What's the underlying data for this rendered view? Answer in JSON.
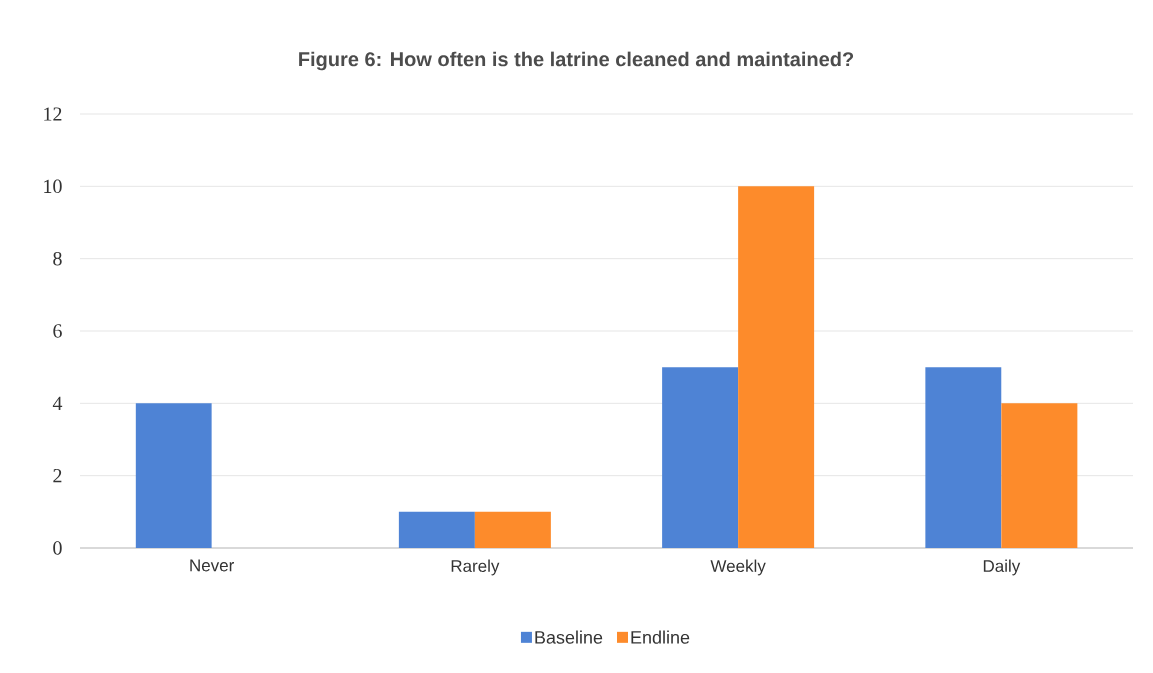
{
  "chart_data": {
    "type": "bar",
    "title": "Figure 6: How often is the latrine cleaned and maintained?",
    "categories": [
      "Never",
      "Rarely",
      "Weekly",
      "Daily"
    ],
    "series": [
      {
        "name": "Baseline",
        "color": "#4e83d5",
        "values": [
          4,
          1,
          5,
          5
        ]
      },
      {
        "name": "Endline",
        "color": "#fd8b2b",
        "values": [
          0,
          1,
          10,
          4
        ]
      }
    ],
    "ylim": [
      0,
      12
    ],
    "yticks": [
      0,
      2,
      4,
      6,
      8,
      10,
      12
    ],
    "grid": "y",
    "legend": "bottom"
  }
}
